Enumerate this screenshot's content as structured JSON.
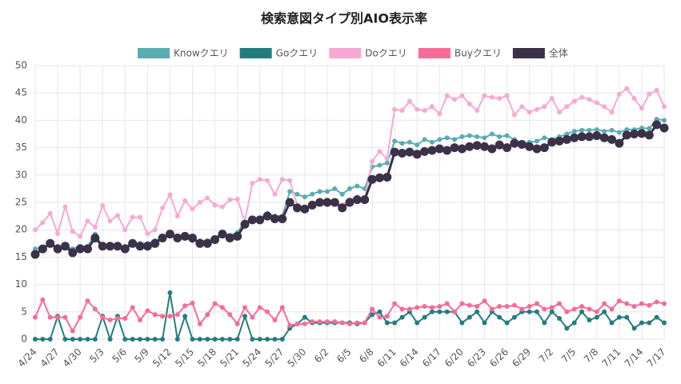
{
  "chart_data": {
    "type": "line",
    "title": "検索意図タイプ別AIO表示率",
    "categories": [
      "4/24",
      null,
      null,
      "4/27",
      null,
      null,
      "4/30",
      null,
      null,
      "5/3",
      null,
      null,
      "5/6",
      null,
      null,
      "5/9",
      null,
      null,
      "5/12",
      null,
      null,
      "5/15",
      null,
      null,
      "5/18",
      null,
      null,
      "5/21",
      null,
      null,
      "5/24",
      null,
      null,
      "5/27",
      null,
      null,
      "5/30",
      null,
      null,
      "6/2",
      null,
      null,
      "6/5",
      null,
      null,
      "6/8",
      null,
      null,
      "6/11",
      null,
      null,
      "6/14",
      null,
      null,
      "6/17",
      null,
      null,
      "6/20",
      null,
      null,
      "6/23",
      null,
      null,
      "6/26",
      null,
      null,
      "6/29",
      null,
      null,
      "7/2",
      null,
      null,
      "7/5",
      null,
      null,
      "7/8",
      null,
      null,
      "7/11",
      null,
      null,
      "7/14",
      null,
      null,
      "7/17"
    ],
    "series": [
      {
        "name": "Knowクエリ",
        "color": "#5aacb3",
        "values": [
          16.5,
          16.8,
          17.2,
          17,
          17,
          16.5,
          17,
          17,
          19.2,
          17,
          17,
          17,
          17,
          17.5,
          17.5,
          17.5,
          18,
          18.5,
          19,
          18.5,
          18.5,
          18,
          18,
          18,
          18.5,
          19.5,
          19,
          19.5,
          21.5,
          22,
          22,
          23,
          22.5,
          22.5,
          27,
          26.5,
          26,
          26.5,
          27,
          27,
          27.5,
          26.5,
          27.5,
          28,
          27.5,
          31.5,
          31.8,
          32.2,
          36.2,
          35.8,
          36,
          35.5,
          36.5,
          36,
          36.5,
          36.8,
          36.5,
          37,
          37.2,
          37,
          36.8,
          37.5,
          37,
          37.2,
          36.5,
          35.8,
          36,
          36.2,
          36.8,
          36.5,
          37,
          37.5,
          38,
          38.2,
          38.2,
          38.3,
          38,
          38.2,
          37.8,
          38.3,
          38.3,
          38.6,
          38.5,
          40.2,
          40
        ]
      },
      {
        "name": "Goクエリ",
        "color": "#237d80",
        "values": [
          0,
          0,
          0,
          4.2,
          0,
          0,
          0,
          0,
          0,
          4.2,
          0,
          4.2,
          0,
          0,
          0,
          0,
          0,
          0,
          8.5,
          0,
          4.2,
          0,
          0,
          0,
          0,
          0,
          0,
          0,
          4.2,
          0,
          0,
          0,
          0,
          0,
          2,
          2.8,
          4,
          3,
          3,
          3,
          3,
          3,
          3,
          2.8,
          3,
          4.5,
          5,
          3,
          3,
          4,
          5,
          3,
          4,
          5,
          5,
          5,
          5,
          3,
          4,
          5,
          3,
          5,
          4,
          3,
          4,
          5,
          5,
          5,
          3,
          5,
          3.8,
          2,
          3,
          5,
          3.5,
          4,
          5,
          3,
          4,
          4,
          2,
          3,
          3,
          4,
          3
        ]
      },
      {
        "name": "Doクエリ",
        "color": "#f7a8d3",
        "values": [
          20,
          21.3,
          23,
          19.3,
          24.2,
          19.7,
          18.8,
          21.6,
          20.5,
          24.4,
          21.6,
          22.6,
          20,
          22.3,
          22.3,
          19.3,
          20,
          24,
          26.4,
          22.5,
          25.3,
          23.8,
          25,
          25.8,
          24.5,
          24.2,
          25.5,
          25.6,
          21.5,
          28.5,
          29.2,
          29,
          26.5,
          29.2,
          29,
          24.5,
          23.8,
          24.5,
          25,
          25.5,
          25,
          24.5,
          25.5,
          26,
          25.5,
          32.5,
          34.3,
          33,
          42,
          41.8,
          43.5,
          42,
          41.8,
          42.5,
          41.2,
          44.5,
          43.8,
          44.5,
          43,
          41.8,
          44.5,
          44.2,
          44,
          44.5,
          41,
          42.5,
          41.5,
          42,
          42.5,
          44,
          41.5,
          42.5,
          43.5,
          44.2,
          43.8,
          43.2,
          42.5,
          41.5,
          44.8,
          45.8,
          44,
          42.2,
          44.8,
          45.5,
          42.5
        ]
      },
      {
        "name": "Buyクエリ",
        "color": "#f76b97",
        "values": [
          4,
          7.2,
          4,
          4,
          4,
          1.5,
          4,
          7,
          5.5,
          4,
          3.5,
          3.8,
          3.8,
          5.8,
          3.5,
          5.2,
          4.5,
          4.2,
          4.2,
          4.5,
          6.1,
          6.6,
          2.8,
          4.5,
          6.5,
          5.8,
          4.5,
          2.8,
          5.8,
          4,
          5.8,
          5,
          3.5,
          5.8,
          2.5,
          2.8,
          2.8,
          3.2,
          3.2,
          3.2,
          3.2,
          3,
          2.8,
          3,
          3,
          5.5,
          4,
          4.2,
          6.5,
          5.5,
          5.5,
          5.8,
          6,
          5.8,
          6,
          6.5,
          5,
          6.5,
          6.2,
          6,
          7,
          5.5,
          6,
          6,
          6.2,
          5.5,
          6,
          6.5,
          5.5,
          5.8,
          6.5,
          5,
          5.5,
          6,
          5.5,
          5,
          6.5,
          5.5,
          7,
          6.5,
          6,
          6.5,
          6.2,
          6.8,
          6.5
        ]
      },
      {
        "name": "全体",
        "color": "#3b3148",
        "values": [
          15.5,
          16.5,
          17.5,
          16.5,
          17,
          15.8,
          16.5,
          16.5,
          18.5,
          17,
          17,
          17,
          16.5,
          17.5,
          17,
          17,
          17.5,
          18.5,
          19.2,
          18.5,
          18.8,
          18.5,
          17.5,
          17.5,
          18.2,
          19.2,
          18.5,
          18.8,
          21,
          21.8,
          21.8,
          22.5,
          22,
          22,
          25,
          24,
          23.8,
          24.5,
          25,
          25,
          25,
          24,
          25,
          25.5,
          25.5,
          29.2,
          29.5,
          29.6,
          34.2,
          34,
          34.2,
          33.8,
          34.3,
          34.5,
          34.8,
          34.5,
          35,
          34.8,
          35.2,
          35.4,
          35.2,
          34.8,
          35.5,
          35,
          35.8,
          35.6,
          35.2,
          34.8,
          35,
          36,
          36.2,
          36.5,
          36.8,
          37,
          37,
          37.2,
          36.8,
          36.5,
          35.8,
          37.3,
          37.5,
          37.6,
          37.3,
          39.2,
          38.6
        ]
      }
    ],
    "ylim": [
      0,
      50
    ],
    "yticks": [
      0,
      5,
      10,
      15,
      20,
      25,
      30,
      35,
      40,
      45,
      50
    ],
    "grid": true,
    "legend": "top"
  }
}
